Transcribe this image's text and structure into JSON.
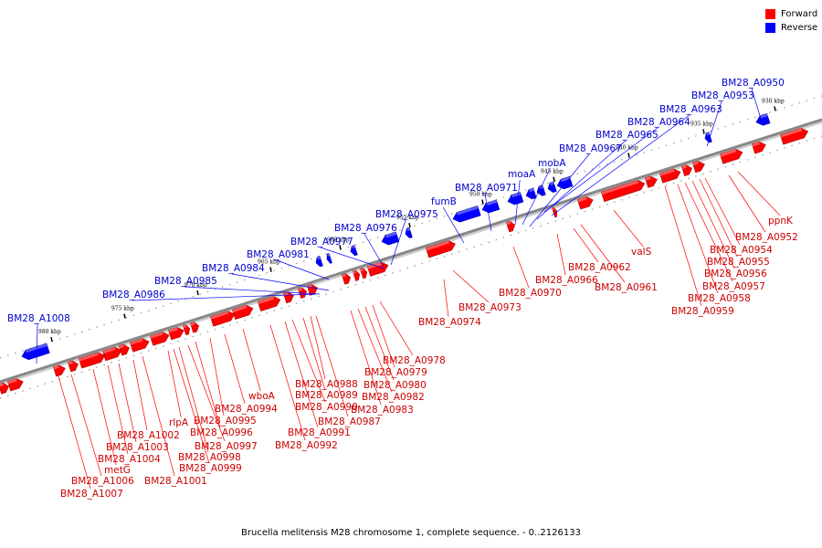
{
  "legend": [
    {
      "label": "Forward",
      "color": "#ff0000"
    },
    {
      "label": "Reverse",
      "color": "#0000ff"
    }
  ],
  "caption": "Brucella melitensis M28 chromosome 1, complete sequence. - 0..2126133",
  "colors": {
    "forward": "#ff0000",
    "reverse": "#0000ff",
    "backbone": "#888888"
  },
  "ticks": [
    "930 kbp",
    "935 kbp",
    "940 kbp",
    "945 kbp",
    "950 kbp",
    "955 kbp",
    "960 kbp",
    "965 kbp",
    "970 kbp",
    "975 kbp",
    "980 kbp"
  ],
  "reverse_labels": [
    "BM28_A0950",
    "BM28_A0953",
    "BM28_A0963",
    "BM28_A0964",
    "BM28_A0965",
    "BM28_A0967",
    "mobA",
    "moaA",
    "BM28_A0971",
    "fumB",
    "BM28_A0975",
    "BM28_A0976",
    "BM28_A0977",
    "BM28_A0981",
    "BM28_A0984",
    "BM28_A0985",
    "BM28_A0986",
    "BM28_A1008"
  ],
  "forward_labels": [
    "ppnK",
    "BM28_A0952",
    "BM28_A0954",
    "BM28_A0955",
    "BM28_A0956",
    "BM28_A0957",
    "BM28_A0958",
    "BM28_A0959",
    "valS",
    "BM28_A0961",
    "BM28_A0962",
    "BM28_A0966",
    "BM28_A0970",
    "BM28_A0973",
    "BM28_A0974",
    "BM28_A0978",
    "BM28_A0979",
    "BM28_A0980",
    "BM28_A0982",
    "BM28_A0983",
    "BM28_A0987",
    "BM28_A0988",
    "BM28_A0989",
    "BM28_A0990",
    "BM28_A0991",
    "BM28_A0992",
    "wboA",
    "BM28_A0994",
    "BM28_A0995",
    "BM28_A0996",
    "BM28_A0997",
    "BM28_A0998",
    "BM28_A0999",
    "rlpA",
    "BM28_A1001",
    "BM28_A1002",
    "BM28_A1003",
    "BM28_A1004",
    "metG",
    "BM28_A1006",
    "BM28_A1007"
  ]
}
